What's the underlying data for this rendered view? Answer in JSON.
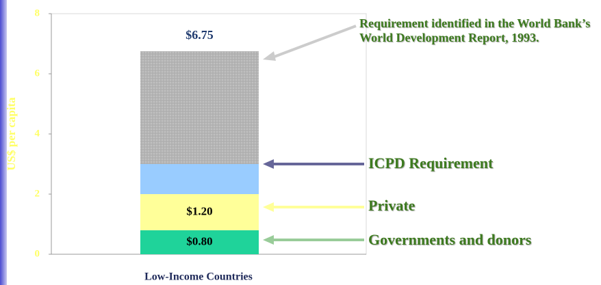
{
  "chart_data": {
    "type": "stacked_bar",
    "ylabel": "US$ per capita",
    "categories": [
      "Low-Income Countries"
    ],
    "ylim": [
      0,
      8
    ],
    "yticks": [
      0,
      2,
      4,
      6,
      8
    ],
    "grid": false,
    "series": [
      {
        "name": "Governments and donors",
        "color": "#1fd39a",
        "arrow_color": "#99cc99",
        "values": [
          0.8
        ],
        "value_labels": [
          "$0.80"
        ]
      },
      {
        "name": "Private",
        "color": "#ffff99",
        "arrow_color": "#ffff99",
        "values": [
          1.2
        ],
        "value_labels": [
          "$1.20"
        ]
      },
      {
        "name": "ICPD Requirement",
        "color": "#99ccff",
        "arrow_color": "#666699",
        "values": [
          1.0
        ]
      },
      {
        "name": "Requirement identified in the World Bank’s World Development Report, 1993.",
        "color": "#b4b4b4",
        "arrow_color": "#cccccc",
        "values": [
          3.75
        ]
      }
    ],
    "total": 6.75,
    "total_label": "$6.75"
  }
}
